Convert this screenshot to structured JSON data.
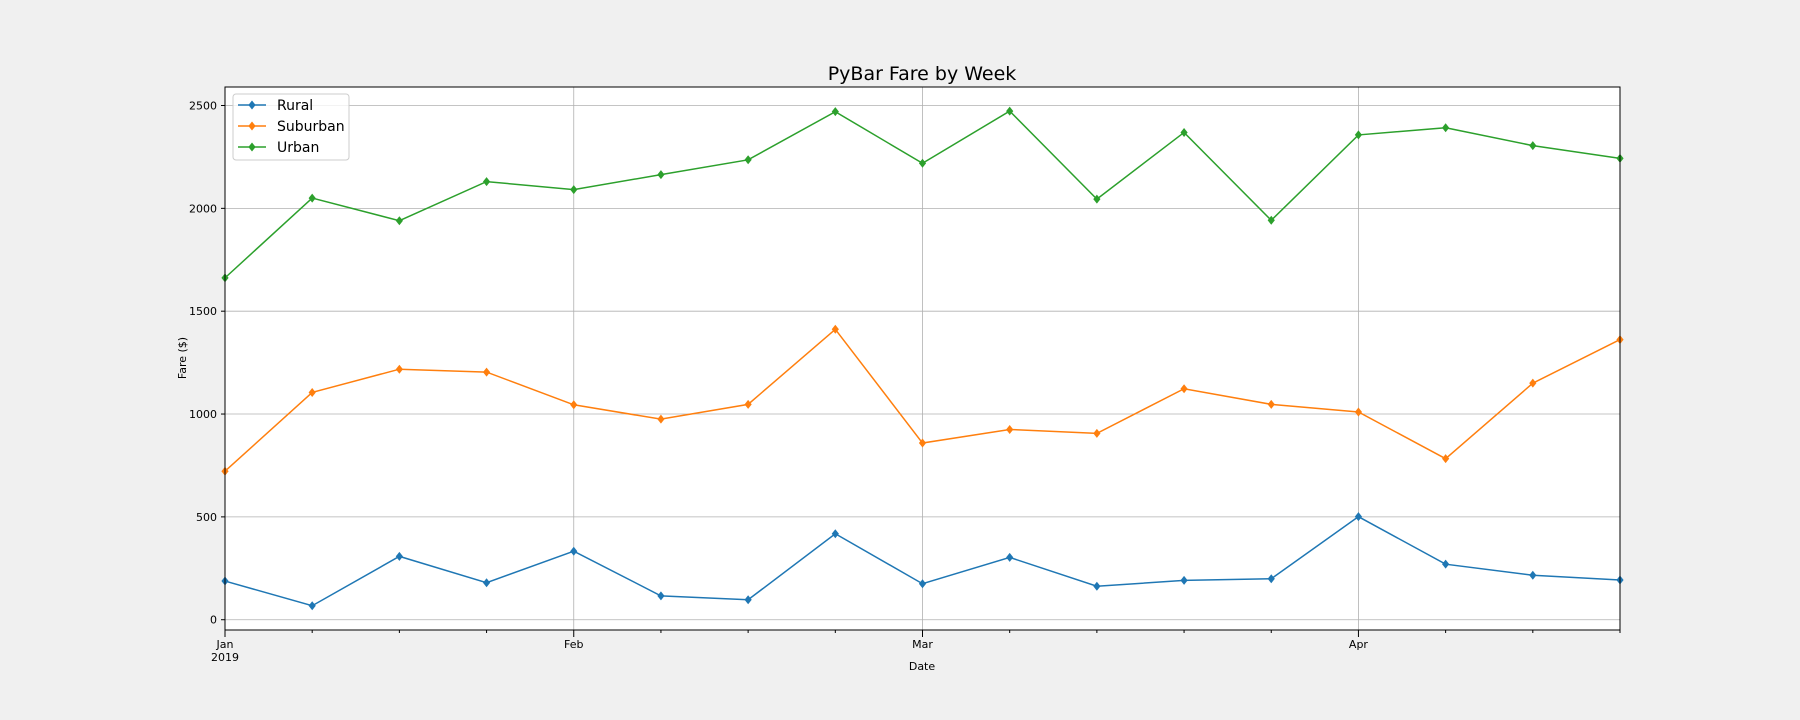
{
  "chart_data": {
    "type": "line",
    "title": "PyBar Fare by Week",
    "xlabel": "Date",
    "ylabel": "Fare ($)",
    "x": [
      "2019-01-06",
      "2019-01-13",
      "2019-01-20",
      "2019-01-27",
      "2019-02-03",
      "2019-02-10",
      "2019-02-17",
      "2019-02-24",
      "2019-03-03",
      "2019-03-10",
      "2019-03-17",
      "2019-03-24",
      "2019-03-31",
      "2019-04-07",
      "2019-04-14",
      "2019-04-21",
      "2019-04-28"
    ],
    "xlim": [
      "2019-01-06",
      "2019-04-28"
    ],
    "x_ticks": [
      {
        "date": "2019-01-06",
        "label": "Jan",
        "sublabel": "2019"
      },
      {
        "date": "2019-02-03",
        "label": "Feb",
        "sublabel": ""
      },
      {
        "date": "2019-03-03",
        "label": "Mar",
        "sublabel": ""
      },
      {
        "date": "2019-04-07",
        "label": "Apr",
        "sublabel": ""
      }
    ],
    "ylim": [
      -50,
      2590
    ],
    "y_ticks": [
      0,
      500,
      1000,
      1500,
      2000,
      2500
    ],
    "grid": true,
    "legend_position": "top-left",
    "marker": "diamond",
    "series": [
      {
        "name": "Rural",
        "color": "#1f77b4",
        "values": [
          188,
          68,
          308,
          180,
          333,
          116,
          97,
          418,
          175,
          303,
          163,
          191,
          199,
          501,
          270,
          216,
          193
        ]
      },
      {
        "name": "Suburban",
        "color": "#ff7f0e",
        "values": [
          722,
          1105,
          1218,
          1204,
          1045,
          975,
          1047,
          1412,
          859,
          925,
          906,
          1123,
          1047,
          1010,
          783,
          1150,
          1362
        ]
      },
      {
        "name": "Urban",
        "color": "#2ca02c",
        "values": [
          1662,
          2050,
          1940,
          2130,
          2091,
          2164,
          2236,
          2470,
          2219,
          2473,
          2045,
          2369,
          1942,
          2357,
          2392,
          2305,
          2243
        ]
      }
    ]
  }
}
